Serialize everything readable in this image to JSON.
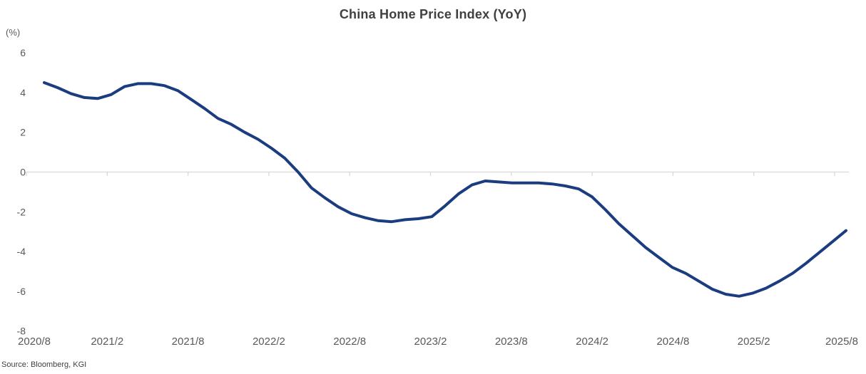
{
  "header": {
    "title": "China Home Price Index (YoY)"
  },
  "axes": {
    "unit_label": "(%)"
  },
  "footer": {
    "source": "Source: Bloomberg, KGI"
  },
  "colors": {
    "line": "#1b3d80",
    "axis": "#d9d9d9",
    "tick_text": "#595959",
    "title_text": "#404040",
    "source_text": "#404040"
  },
  "chart_data": {
    "type": "line",
    "title": "China Home Price Index (YoY)",
    "ylabel": "(%)",
    "xlabel": "",
    "ylim": [
      -8,
      6
    ],
    "y_ticks": [
      6,
      4,
      2,
      0,
      -2,
      -4,
      -6,
      -8
    ],
    "x_tick_labels": [
      "2020/8",
      "2021/2",
      "2021/8",
      "2022/2",
      "2022/8",
      "2023/2",
      "2023/8",
      "2024/2",
      "2024/8",
      "2025/2",
      "2025/8"
    ],
    "grid": "zero-axis-line-only",
    "legend": "none",
    "x": [
      "2020/8",
      "2020/9",
      "2020/10",
      "2020/11",
      "2020/12",
      "2021/1",
      "2021/2",
      "2021/3",
      "2021/4",
      "2021/5",
      "2021/6",
      "2021/7",
      "2021/8",
      "2021/9",
      "2021/10",
      "2021/11",
      "2021/12",
      "2022/1",
      "2022/2",
      "2022/3",
      "2022/4",
      "2022/5",
      "2022/6",
      "2022/7",
      "2022/8",
      "2022/9",
      "2022/10",
      "2022/11",
      "2022/12",
      "2023/1",
      "2023/2",
      "2023/3",
      "2023/4",
      "2023/5",
      "2023/6",
      "2023/7",
      "2023/8",
      "2023/9",
      "2023/10",
      "2023/11",
      "2023/12",
      "2024/1",
      "2024/2",
      "2024/3",
      "2024/4",
      "2024/5",
      "2024/6",
      "2024/7",
      "2024/8",
      "2024/9",
      "2024/10",
      "2024/11",
      "2024/12",
      "2025/1",
      "2025/2",
      "2025/3",
      "2025/4",
      "2025/5",
      "2025/6",
      "2025/7",
      "2025/8"
    ],
    "values": [
      4.5,
      4.25,
      3.95,
      3.75,
      3.7,
      3.9,
      4.3,
      4.45,
      4.45,
      4.35,
      4.1,
      3.65,
      3.2,
      2.7,
      2.4,
      2.0,
      1.65,
      1.2,
      0.7,
      0.0,
      -0.8,
      -1.3,
      -1.75,
      -2.1,
      -2.3,
      -2.45,
      -2.5,
      -2.4,
      -2.35,
      -2.25,
      -1.7,
      -1.1,
      -0.65,
      -0.45,
      -0.5,
      -0.55,
      -0.55,
      -0.55,
      -0.6,
      -0.7,
      -0.85,
      -1.25,
      -1.9,
      -2.6,
      -3.2,
      -3.8,
      -4.3,
      -4.8,
      -5.1,
      -5.5,
      -5.9,
      -6.15,
      -6.25,
      -6.1,
      -5.85,
      -5.5,
      -5.1,
      -4.6,
      -4.05,
      -3.5,
      -2.95
    ]
  }
}
